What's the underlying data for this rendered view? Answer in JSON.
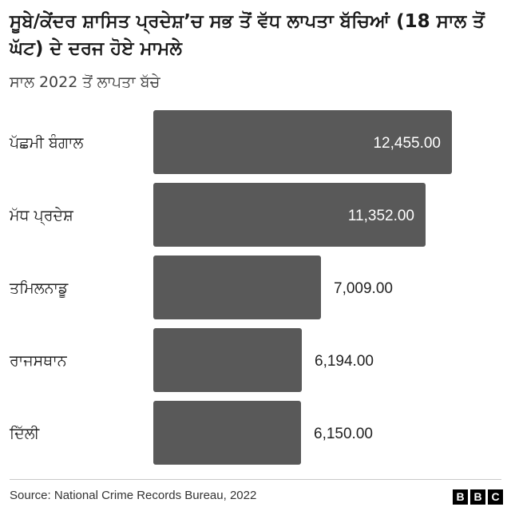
{
  "header": {
    "title": "ਸੂਬੇ/ਕੇਂਦਰ ਸ਼ਾਸਿਤ ਪ੍ਰਦੇਸ਼’ਚ ਸਭ ਤੋਂ ਵੱਧ ਲਾਪਤਾ ਬੱਚਿਆਂ (18 ਸਾਲ ਤੋਂ ਘੱਟ) ਦੇ ਦਰਜ ਹੋਏ ਮਾਮਲੇ",
    "subtitle": "ਸਾਲ 2022 ਤੋਂ ਲਾਪਤਾ ਬੱਚੇ"
  },
  "footer": {
    "source": "Source: National Crime Records Bureau, 2022",
    "logo": [
      "B",
      "B",
      "C"
    ]
  },
  "colors": {
    "bar": "#595959",
    "label_inside": "#ffffff",
    "label_outside": "#222222"
  },
  "chart_data": {
    "type": "bar",
    "orientation": "horizontal",
    "categories": [
      "ਪੱਛਮੀ ਬੰਗਾਲ",
      "ਮੱਧ ਪ੍ਰਦੇਸ਼",
      "ਤਮਿਲਨਾਡੂ",
      "ਰਾਜਸਥਾਨ",
      "ਦਿੱਲੀ"
    ],
    "values": [
      12455,
      11352,
      7009,
      6194,
      6150
    ],
    "value_labels": [
      "12,455.00",
      "11,352.00",
      "7,009.00",
      "6,194.00",
      "6,150.00"
    ],
    "xlim": [
      0,
      12455
    ],
    "grid": false,
    "legend": "none"
  }
}
